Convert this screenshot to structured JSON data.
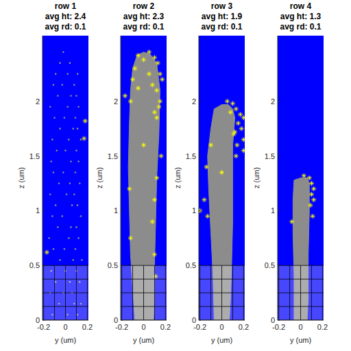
{
  "chart_data": [
    {
      "type": "scatter",
      "title": [
        "row 1",
        "avg ht: 2.4",
        "avg rd: 0.1"
      ],
      "x_label": "y (um)",
      "y_label": "z (um)",
      "xlim": [
        -0.21,
        0.21
      ],
      "ylim": [
        0,
        2.6
      ],
      "xticks": [
        -0.2,
        0,
        0.2
      ],
      "yticks": [
        0,
        0.5,
        1,
        1.5,
        2
      ],
      "mesh": {
        "x": [
          -0.2,
          -0.1,
          0,
          0.1,
          0.2
        ],
        "z": [
          0,
          0.125,
          0.25,
          0.375,
          0.5
        ]
      },
      "series": [
        {
          "type": "scatter",
          "marker": "dot",
          "color": "#8c8c8c",
          "x": [
            -0.12,
            0.02,
            0.11,
            -0.06,
            0.08,
            0.14,
            -0.14,
            -0.02,
            0.06,
            -0.09,
            0.04,
            0.13,
            -0.13,
            0.0,
            0.1,
            -0.05,
            0.07,
            0.15,
            -0.11,
            -0.01,
            0.09,
            -0.15,
            0.03,
            0.12,
            -0.07,
            0.05,
            0.1,
            -0.12,
            -0.03,
            0.14,
            -0.09,
            0.06,
            0.11,
            -0.14,
            0.01,
            0.08,
            -0.06,
            0.04,
            0.13,
            -0.11,
            -0.02,
            0.09,
            -0.13,
            0.05,
            0.12,
            -0.08,
            0.0,
            0.1,
            -0.12,
            0.03,
            0.14,
            -0.05,
            0.07,
            0.11,
            -0.1,
            -0.01,
            0.09,
            -0.14,
            0.02,
            0.12,
            -0.07,
            0.05,
            0.1,
            -0.11,
            -0.03,
            0.08,
            -0.09,
            0.02,
            0.11,
            -0.05,
            0.04,
            -0.02
          ],
          "values": [
            0.05,
            0.05,
            0.05,
            0.15,
            0.15,
            0.15,
            0.25,
            0.25,
            0.25,
            0.35,
            0.35,
            0.35,
            0.45,
            0.45,
            0.45,
            0.55,
            0.55,
            0.55,
            0.65,
            0.65,
            0.65,
            0.75,
            0.75,
            0.75,
            0.85,
            0.85,
            0.85,
            0.95,
            0.95,
            0.95,
            1.05,
            1.05,
            1.05,
            1.15,
            1.15,
            1.15,
            1.25,
            1.25,
            1.25,
            1.35,
            1.35,
            1.35,
            1.45,
            1.45,
            1.45,
            1.55,
            1.55,
            1.55,
            1.65,
            1.65,
            1.65,
            1.75,
            1.75,
            1.75,
            1.85,
            1.85,
            1.85,
            1.95,
            1.95,
            1.95,
            2.05,
            2.05,
            2.05,
            2.15,
            2.15,
            2.15,
            2.25,
            2.25,
            2.25,
            2.35,
            2.35,
            2.45
          ]
        },
        {
          "type": "scatter",
          "marker": "asterisk",
          "color": "#ffff00",
          "x": [
            0.18,
            0.17,
            -0.17
          ],
          "values": [
            1.82,
            1.66,
            0.62
          ]
        }
      ]
    },
    {
      "type": "scatter",
      "title": [
        "row 2",
        "avg ht: 2.3",
        "avg rd: 0.1"
      ],
      "x_label": "y (um)",
      "y_label": "z (um)",
      "xlim": [
        -0.21,
        0.21
      ],
      "ylim": [
        0,
        2.6
      ],
      "xticks": [
        -0.2,
        0,
        0.2
      ],
      "yticks": [
        0,
        0.5,
        1,
        1.5,
        2
      ],
      "mesh": {
        "x": [
          -0.2,
          -0.1,
          0,
          0.1,
          0.2
        ],
        "z": [
          0,
          0.125,
          0.25,
          0.375,
          0.5
        ]
      },
      "series": [
        {
          "type": "area",
          "color": "#8c8c8c",
          "x": [
            -0.08,
            -0.1,
            -0.12,
            -0.13,
            -0.14,
            -0.13,
            -0.12,
            -0.1,
            -0.06,
            0.0,
            0.06,
            0.12,
            0.15,
            0.14,
            0.12,
            0.11,
            0.1,
            0.1,
            0.09
          ],
          "values": [
            0,
            0.3,
            0.6,
            1.0,
            1.4,
            1.8,
            2.1,
            2.3,
            2.42,
            2.45,
            2.43,
            2.35,
            2.1,
            1.7,
            1.3,
            0.9,
            0.5,
            0.2,
            0
          ]
        },
        {
          "type": "scatter",
          "marker": "asterisk",
          "color": "#ffff00",
          "x": [
            -0.05,
            0.0,
            0.05,
            0.1,
            0.13,
            -0.08,
            0.15,
            -0.1,
            0.17,
            0.12,
            0.15,
            -0.12,
            0.05,
            0.08,
            0.14,
            0.1,
            0.12,
            -0.17,
            -0.05,
            0.16,
            0.12,
            -0.13,
            0.0,
            0.1,
            -0.12,
            0.1,
            0.11,
            0.08
          ],
          "values": [
            2.42,
            2.38,
            2.45,
            2.4,
            2.35,
            2.3,
            2.25,
            2.2,
            2.2,
            2.1,
            2.0,
            2.0,
            2.25,
            2.15,
            1.95,
            1.9,
            1.85,
            2.05,
            2.12,
            1.5,
            1.3,
            1.2,
            1.6,
            1.1,
            0.75,
            0.6,
            0.4,
            0.9
          ]
        }
      ]
    },
    {
      "type": "scatter",
      "title": [
        "row 3",
        "avg ht: 1.9",
        "avg rd: 0.1"
      ],
      "x_label": "y (um)",
      "y_label": "z (um)",
      "xlim": [
        -0.21,
        0.21
      ],
      "ylim": [
        0,
        2.6
      ],
      "xticks": [
        -0.2,
        0,
        0.2
      ],
      "yticks": [
        0,
        0.5,
        1,
        1.5,
        2
      ],
      "mesh": {
        "x": [
          -0.2,
          -0.1,
          0,
          0.1,
          0.2
        ],
        "z": [
          0,
          0.125,
          0.25,
          0.375,
          0.5
        ]
      },
      "series": [
        {
          "type": "area",
          "color": "#8c8c8c",
          "x": [
            -0.07,
            -0.08,
            -0.1,
            -0.12,
            -0.13,
            -0.1,
            -0.07,
            0.0,
            0.06,
            0.1,
            0.12,
            0.1,
            0.1,
            0.1,
            0.09,
            0.08,
            0.07
          ],
          "values": [
            0,
            0.4,
            0.8,
            1.2,
            1.5,
            1.75,
            1.93,
            1.97,
            1.97,
            1.93,
            1.85,
            1.6,
            1.3,
            0.9,
            0.5,
            0.2,
            0
          ]
        },
        {
          "type": "scatter",
          "marker": "asterisk",
          "color": "#ffff00",
          "x": [
            0.05,
            0.1,
            0.13,
            0.17,
            0.2,
            0.15,
            0.18,
            0.12,
            0.2,
            0.14,
            0.2,
            0.13,
            -0.14,
            -0.16,
            -0.2,
            -0.13,
            -0.1,
            0.11,
            0.08,
            0.0
          ],
          "values": [
            2.0,
            1.98,
            1.93,
            1.88,
            1.85,
            1.8,
            1.75,
            1.72,
            1.65,
            1.6,
            1.55,
            1.5,
            1.4,
            1.1,
            1.0,
            0.95,
            1.6,
            1.7,
            1.9,
            1.35
          ]
        }
      ]
    },
    {
      "type": "scatter",
      "title": [
        "row 4",
        "avg ht: 1.3",
        "avg rd: 0.1"
      ],
      "x_label": "y (um)",
      "y_label": "z (um)",
      "xlim": [
        -0.21,
        0.21
      ],
      "ylim": [
        0,
        2.6
      ],
      "xticks": [
        -0.2,
        0,
        0.2
      ],
      "yticks": [
        0,
        0.5,
        1,
        1.5,
        2
      ],
      "mesh": {
        "x": [
          -0.2,
          -0.1,
          0,
          0.1,
          0.2
        ],
        "z": [
          0,
          0.125,
          0.25,
          0.375,
          0.5
        ]
      },
      "series": [
        {
          "type": "area",
          "color": "#8c8c8c",
          "x": [
            -0.06,
            -0.06,
            -0.07,
            -0.07,
            -0.06,
            0.0,
            0.06,
            0.08,
            0.08,
            0.07,
            0.07,
            0.06
          ],
          "values": [
            0,
            0.4,
            0.8,
            1.1,
            1.28,
            1.3,
            1.3,
            1.25,
            1.0,
            0.6,
            0.2,
            0
          ]
        },
        {
          "type": "scatter",
          "marker": "asterisk",
          "color": "#ffff00",
          "x": [
            0.03,
            0.08,
            0.1,
            0.12,
            0.1,
            0.12,
            0.09,
            0.11,
            -0.08
          ],
          "values": [
            1.32,
            1.3,
            1.25,
            1.2,
            1.15,
            1.1,
            1.05,
            0.95,
            0.9
          ]
        }
      ]
    }
  ]
}
